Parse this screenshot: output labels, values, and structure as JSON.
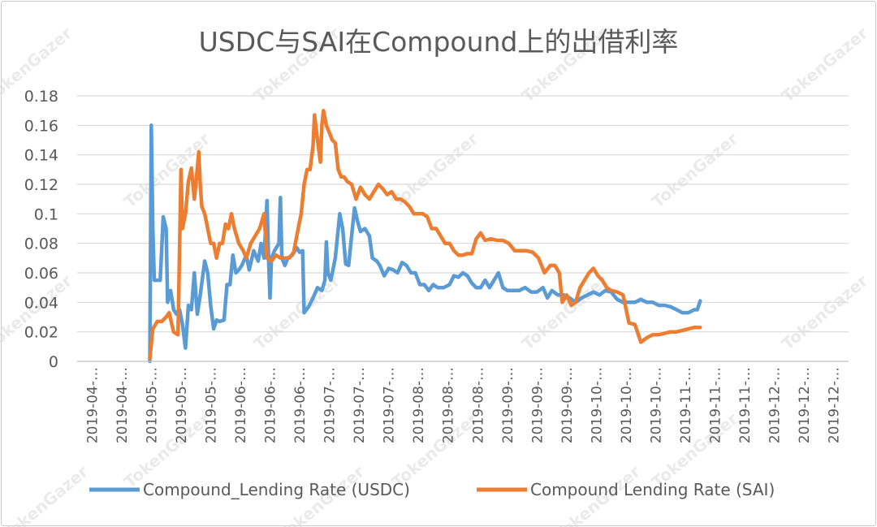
{
  "chart_data": {
    "type": "line",
    "title": "USDC与SAI在Compound上的出借利率",
    "xlabel": "",
    "ylabel": "",
    "ylim": [
      0,
      0.18
    ],
    "yticks": [
      "0",
      "0.02",
      "0.04",
      "0.06",
      "0.08",
      "0.1",
      "0.12",
      "0.14",
      "0.16",
      "0.18"
    ],
    "x_tick_labels": [
      "2019-04-…",
      "2019-04-…",
      "2019-05-…",
      "2019-05-…",
      "2019-05-…",
      "2019-06-…",
      "2019-06-…",
      "2019-06-…",
      "2019-07-…",
      "2019-07-…",
      "2019-07-…",
      "2019-08-…",
      "2019-08-…",
      "2019-08-…",
      "2019-09-…",
      "2019-09-…",
      "2019-09-…",
      "2019-10-…",
      "2019-10-…",
      "2019-10-…",
      "2019-11-…",
      "2019-11-…",
      "2019-11-…",
      "2019-12-…",
      "2019-12-…",
      "2019-12-…"
    ],
    "grid": true,
    "legend_position": "bottom",
    "watermark": "TokenGazer",
    "series": [
      {
        "name": "Compound_Lending Rate (USDC)",
        "color": "#5b9bd5",
        "points": [
          [
            1.95,
            0.0
          ],
          [
            2.0,
            0.16
          ],
          [
            2.05,
            0.09
          ],
          [
            2.1,
            0.055
          ],
          [
            2.3,
            0.055
          ],
          [
            2.4,
            0.098
          ],
          [
            2.5,
            0.09
          ],
          [
            2.55,
            0.04
          ],
          [
            2.65,
            0.048
          ],
          [
            2.75,
            0.035
          ],
          [
            2.85,
            0.032
          ],
          [
            2.95,
            0.035
          ],
          [
            3.05,
            0.025
          ],
          [
            3.15,
            0.009
          ],
          [
            3.25,
            0.038
          ],
          [
            3.35,
            0.035
          ],
          [
            3.45,
            0.06
          ],
          [
            3.55,
            0.032
          ],
          [
            3.65,
            0.045
          ],
          [
            3.8,
            0.068
          ],
          [
            3.9,
            0.06
          ],
          [
            4.0,
            0.038
          ],
          [
            4.1,
            0.022
          ],
          [
            4.2,
            0.028
          ],
          [
            4.3,
            0.027
          ],
          [
            4.45,
            0.028
          ],
          [
            4.55,
            0.052
          ],
          [
            4.65,
            0.052
          ],
          [
            4.75,
            0.072
          ],
          [
            4.85,
            0.06
          ],
          [
            4.95,
            0.062
          ],
          [
            5.05,
            0.065
          ],
          [
            5.2,
            0.072
          ],
          [
            5.3,
            0.062
          ],
          [
            5.45,
            0.075
          ],
          [
            5.6,
            0.068
          ],
          [
            5.7,
            0.08
          ],
          [
            5.8,
            0.07
          ],
          [
            5.9,
            0.109
          ],
          [
            5.95,
            0.07
          ],
          [
            6.0,
            0.043
          ],
          [
            6.05,
            0.07
          ],
          [
            6.15,
            0.075
          ],
          [
            6.3,
            0.08
          ],
          [
            6.35,
            0.111
          ],
          [
            6.4,
            0.07
          ],
          [
            6.5,
            0.065
          ],
          [
            6.6,
            0.07
          ],
          [
            6.75,
            0.072
          ],
          [
            6.9,
            0.077
          ],
          [
            7.0,
            0.074
          ],
          [
            7.1,
            0.075
          ],
          [
            7.15,
            0.033
          ],
          [
            7.3,
            0.037
          ],
          [
            7.45,
            0.043
          ],
          [
            7.6,
            0.05
          ],
          [
            7.75,
            0.048
          ],
          [
            7.85,
            0.055
          ],
          [
            7.9,
            0.081
          ],
          [
            7.95,
            0.06
          ],
          [
            8.05,
            0.055
          ],
          [
            8.2,
            0.07
          ],
          [
            8.35,
            0.1
          ],
          [
            8.45,
            0.09
          ],
          [
            8.55,
            0.066
          ],
          [
            8.65,
            0.065
          ],
          [
            8.75,
            0.085
          ],
          [
            8.85,
            0.104
          ],
          [
            8.95,
            0.095
          ],
          [
            9.05,
            0.088
          ],
          [
            9.2,
            0.09
          ],
          [
            9.35,
            0.085
          ],
          [
            9.45,
            0.07
          ],
          [
            9.6,
            0.068
          ],
          [
            9.7,
            0.065
          ],
          [
            9.85,
            0.058
          ],
          [
            10.0,
            0.063
          ],
          [
            10.15,
            0.062
          ],
          [
            10.3,
            0.06
          ],
          [
            10.45,
            0.067
          ],
          [
            10.6,
            0.065
          ],
          [
            10.75,
            0.06
          ],
          [
            10.9,
            0.06
          ],
          [
            11.05,
            0.052
          ],
          [
            11.2,
            0.052
          ],
          [
            11.35,
            0.048
          ],
          [
            11.5,
            0.052
          ],
          [
            11.65,
            0.05
          ],
          [
            11.85,
            0.05
          ],
          [
            12.05,
            0.052
          ],
          [
            12.2,
            0.058
          ],
          [
            12.35,
            0.057
          ],
          [
            12.5,
            0.06
          ],
          [
            12.65,
            0.058
          ],
          [
            12.8,
            0.053
          ],
          [
            12.95,
            0.05
          ],
          [
            13.1,
            0.05
          ],
          [
            13.25,
            0.055
          ],
          [
            13.4,
            0.05
          ],
          [
            13.55,
            0.055
          ],
          [
            13.7,
            0.06
          ],
          [
            13.85,
            0.05
          ],
          [
            14.0,
            0.048
          ],
          [
            14.2,
            0.048
          ],
          [
            14.4,
            0.048
          ],
          [
            14.6,
            0.05
          ],
          [
            14.8,
            0.047
          ],
          [
            15.0,
            0.047
          ],
          [
            15.2,
            0.05
          ],
          [
            15.35,
            0.043
          ],
          [
            15.5,
            0.048
          ],
          [
            15.7,
            0.045
          ],
          [
            15.9,
            0.045
          ],
          [
            16.1,
            0.043
          ],
          [
            16.3,
            0.04
          ],
          [
            16.5,
            0.043
          ],
          [
            16.7,
            0.045
          ],
          [
            16.9,
            0.047
          ],
          [
            17.1,
            0.045
          ],
          [
            17.3,
            0.048
          ],
          [
            17.5,
            0.047
          ],
          [
            17.7,
            0.042
          ],
          [
            17.9,
            0.04
          ],
          [
            18.1,
            0.04
          ],
          [
            18.3,
            0.04
          ],
          [
            18.5,
            0.042
          ],
          [
            18.7,
            0.04
          ],
          [
            18.9,
            0.04
          ],
          [
            19.1,
            0.038
          ],
          [
            19.3,
            0.038
          ],
          [
            19.5,
            0.037
          ],
          [
            19.7,
            0.035
          ],
          [
            19.9,
            0.033
          ],
          [
            20.1,
            0.033
          ],
          [
            20.3,
            0.035
          ],
          [
            20.4,
            0.035
          ],
          [
            20.5,
            0.041
          ]
        ]
      },
      {
        "name": "Compound Lending Rate (SAI)",
        "color": "#ed7d31",
        "points": [
          [
            1.95,
            0.002
          ],
          [
            2.05,
            0.022
          ],
          [
            2.2,
            0.027
          ],
          [
            2.35,
            0.027
          ],
          [
            2.5,
            0.03
          ],
          [
            2.6,
            0.033
          ],
          [
            2.75,
            0.02
          ],
          [
            2.9,
            0.018
          ],
          [
            3.0,
            0.13
          ],
          [
            3.05,
            0.09
          ],
          [
            3.15,
            0.1
          ],
          [
            3.25,
            0.122
          ],
          [
            3.35,
            0.131
          ],
          [
            3.45,
            0.11
          ],
          [
            3.5,
            0.12
          ],
          [
            3.6,
            0.142
          ],
          [
            3.65,
            0.12
          ],
          [
            3.7,
            0.105
          ],
          [
            3.8,
            0.1
          ],
          [
            3.9,
            0.09
          ],
          [
            4.0,
            0.08
          ],
          [
            4.1,
            0.08
          ],
          [
            4.2,
            0.07
          ],
          [
            4.3,
            0.08
          ],
          [
            4.4,
            0.08
          ],
          [
            4.5,
            0.093
          ],
          [
            4.6,
            0.09
          ],
          [
            4.7,
            0.1
          ],
          [
            4.8,
            0.09
          ],
          [
            4.95,
            0.08
          ],
          [
            5.1,
            0.075
          ],
          [
            5.2,
            0.07
          ],
          [
            5.35,
            0.08
          ],
          [
            5.5,
            0.085
          ],
          [
            5.65,
            0.09
          ],
          [
            5.8,
            0.1
          ],
          [
            5.9,
            0.07
          ],
          [
            6.05,
            0.068
          ],
          [
            6.2,
            0.072
          ],
          [
            6.35,
            0.07
          ],
          [
            6.5,
            0.07
          ],
          [
            6.65,
            0.07
          ],
          [
            6.8,
            0.074
          ],
          [
            6.95,
            0.09
          ],
          [
            7.05,
            0.1
          ],
          [
            7.15,
            0.12
          ],
          [
            7.25,
            0.13
          ],
          [
            7.35,
            0.13
          ],
          [
            7.45,
            0.146
          ],
          [
            7.5,
            0.167
          ],
          [
            7.6,
            0.15
          ],
          [
            7.7,
            0.135
          ],
          [
            7.75,
            0.16
          ],
          [
            7.8,
            0.17
          ],
          [
            7.9,
            0.16
          ],
          [
            8.0,
            0.155
          ],
          [
            8.1,
            0.15
          ],
          [
            8.2,
            0.148
          ],
          [
            8.3,
            0.13
          ],
          [
            8.4,
            0.125
          ],
          [
            8.5,
            0.125
          ],
          [
            8.6,
            0.122
          ],
          [
            8.75,
            0.12
          ],
          [
            8.9,
            0.11
          ],
          [
            9.05,
            0.118
          ],
          [
            9.2,
            0.113
          ],
          [
            9.35,
            0.11
          ],
          [
            9.5,
            0.115
          ],
          [
            9.65,
            0.12
          ],
          [
            9.8,
            0.117
          ],
          [
            9.95,
            0.113
          ],
          [
            10.1,
            0.115
          ],
          [
            10.25,
            0.11
          ],
          [
            10.4,
            0.11
          ],
          [
            10.55,
            0.108
          ],
          [
            10.7,
            0.105
          ],
          [
            10.85,
            0.1
          ],
          [
            11.0,
            0.1
          ],
          [
            11.15,
            0.1
          ],
          [
            11.3,
            0.098
          ],
          [
            11.45,
            0.09
          ],
          [
            11.6,
            0.09
          ],
          [
            11.75,
            0.085
          ],
          [
            11.9,
            0.08
          ],
          [
            12.05,
            0.08
          ],
          [
            12.2,
            0.075
          ],
          [
            12.35,
            0.072
          ],
          [
            12.5,
            0.072
          ],
          [
            12.65,
            0.073
          ],
          [
            12.8,
            0.073
          ],
          [
            12.95,
            0.083
          ],
          [
            13.1,
            0.087
          ],
          [
            13.25,
            0.082
          ],
          [
            13.45,
            0.083
          ],
          [
            13.65,
            0.082
          ],
          [
            13.85,
            0.082
          ],
          [
            14.05,
            0.08
          ],
          [
            14.25,
            0.075
          ],
          [
            14.45,
            0.075
          ],
          [
            14.65,
            0.075
          ],
          [
            14.85,
            0.074
          ],
          [
            15.05,
            0.07
          ],
          [
            15.25,
            0.06
          ],
          [
            15.45,
            0.065
          ],
          [
            15.6,
            0.065
          ],
          [
            15.75,
            0.06
          ],
          [
            15.85,
            0.04
          ],
          [
            16.0,
            0.045
          ],
          [
            16.15,
            0.038
          ],
          [
            16.3,
            0.04
          ],
          [
            16.45,
            0.05
          ],
          [
            16.6,
            0.055
          ],
          [
            16.75,
            0.06
          ],
          [
            16.9,
            0.063
          ],
          [
            17.05,
            0.058
          ],
          [
            17.2,
            0.055
          ],
          [
            17.35,
            0.05
          ],
          [
            17.5,
            0.048
          ],
          [
            17.7,
            0.047
          ],
          [
            17.9,
            0.045
          ],
          [
            18.1,
            0.026
          ],
          [
            18.3,
            0.025
          ],
          [
            18.5,
            0.013
          ],
          [
            18.7,
            0.016
          ],
          [
            18.9,
            0.018
          ],
          [
            19.1,
            0.018
          ],
          [
            19.3,
            0.019
          ],
          [
            19.5,
            0.02
          ],
          [
            19.7,
            0.02
          ],
          [
            19.9,
            0.021
          ],
          [
            20.1,
            0.022
          ],
          [
            20.3,
            0.023
          ],
          [
            20.5,
            0.023
          ]
        ]
      }
    ]
  }
}
